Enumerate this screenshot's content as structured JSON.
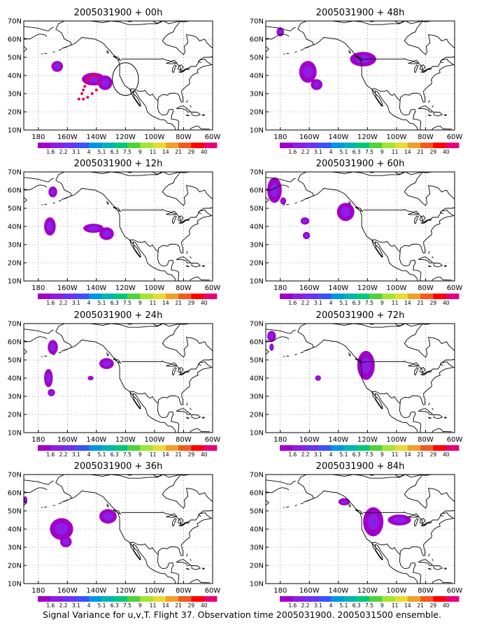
{
  "figure": {
    "caption": "Signal Variance for u,v,T. Flight 37. Observation time 2005031900. 2005031500 ensemble."
  },
  "colorbar": {
    "labels": [
      "1.6",
      "2.2",
      "3.1",
      "4",
      "5.1",
      "6.3",
      "7.5",
      "9",
      "11",
      "14",
      "21",
      "29",
      "40"
    ],
    "colors": [
      "#a000c8",
      "#8c1ee6",
      "#6e32f0",
      "#3c50ff",
      "#0096e1",
      "#00b4b4",
      "#00c878",
      "#50d23c",
      "#a0e632",
      "#e6dc32",
      "#f0a028",
      "#f05a1e",
      "#ff0000",
      "#e6007a"
    ]
  },
  "axes": {
    "x_ticks": [
      "180",
      "160W",
      "140W",
      "120W",
      "100W",
      "80W",
      "60W"
    ],
    "y_ticks": [
      "10N",
      "20N",
      "30N",
      "40N",
      "50N",
      "60N",
      "70N"
    ]
  },
  "chart_data": [
    {
      "type": "heatmap",
      "title": "2005031900 + 00h",
      "xlim": [
        -190,
        -60
      ],
      "ylim": [
        10,
        70
      ],
      "blobs": [
        {
          "lon": -167,
          "lat": 45,
          "rx": 4,
          "ry": 3
        },
        {
          "lon": -142,
          "lat": 38,
          "rx": 8,
          "ry": 3.5
        },
        {
          "lon": -134,
          "lat": 36,
          "rx": 5,
          "ry": 4
        }
      ],
      "track": [
        [
          -152,
          27
        ],
        [
          -150,
          30
        ],
        [
          -149,
          32
        ],
        [
          -148,
          34
        ],
        [
          -147,
          36
        ],
        [
          -146,
          38
        ],
        [
          -145,
          39
        ],
        [
          -143,
          40
        ],
        [
          -141,
          40
        ],
        [
          -139,
          39
        ],
        [
          -138,
          36
        ],
        [
          -140,
          32
        ],
        [
          -143,
          30
        ],
        [
          -146,
          28
        ],
        [
          -149,
          27
        ]
      ],
      "circle": {
        "lon": -120,
        "lat": 38,
        "r": 9
      }
    },
    {
      "type": "heatmap",
      "title": "2005031900 + 48h",
      "xlim": [
        -190,
        -60
      ],
      "ylim": [
        10,
        70
      ],
      "blobs": [
        {
          "lon": -180,
          "lat": 64,
          "rx": 2.5,
          "ry": 2.5
        },
        {
          "lon": -161,
          "lat": 42,
          "rx": 6,
          "ry": 6
        },
        {
          "lon": -155,
          "lat": 35,
          "rx": 4,
          "ry": 3
        },
        {
          "lon": -123,
          "lat": 49,
          "rx": 9,
          "ry": 4
        }
      ]
    },
    {
      "type": "heatmap",
      "title": "2005031900 + 12h",
      "xlim": [
        -190,
        -60
      ],
      "ylim": [
        10,
        70
      ],
      "blobs": [
        {
          "lon": -170,
          "lat": 59,
          "rx": 3,
          "ry": 3
        },
        {
          "lon": -172,
          "lat": 40,
          "rx": 4,
          "ry": 5
        },
        {
          "lon": -142,
          "lat": 39,
          "rx": 7,
          "ry": 2.5
        },
        {
          "lon": -133,
          "lat": 36,
          "rx": 5,
          "ry": 3.5
        }
      ]
    },
    {
      "type": "heatmap",
      "title": "2005031900 + 60h",
      "xlim": [
        -190,
        -60
      ],
      "ylim": [
        10,
        70
      ],
      "blobs": [
        {
          "lon": -184,
          "lat": 60,
          "rx": 5,
          "ry": 7
        },
        {
          "lon": -178,
          "lat": 54,
          "rx": 2,
          "ry": 2
        },
        {
          "lon": -163,
          "lat": 43,
          "rx": 3,
          "ry": 2
        },
        {
          "lon": -162,
          "lat": 35,
          "rx": 2.5,
          "ry": 2
        },
        {
          "lon": -135,
          "lat": 48,
          "rx": 6,
          "ry": 5
        }
      ]
    },
    {
      "type": "heatmap",
      "title": "2005031900 + 24h",
      "xlim": [
        -190,
        -60
      ],
      "ylim": [
        10,
        70
      ],
      "blobs": [
        {
          "lon": -170,
          "lat": 57,
          "rx": 3.5,
          "ry": 4
        },
        {
          "lon": -173,
          "lat": 40,
          "rx": 3,
          "ry": 5
        },
        {
          "lon": -171,
          "lat": 32,
          "rx": 2.5,
          "ry": 2
        },
        {
          "lon": -133,
          "lat": 48,
          "rx": 5,
          "ry": 3
        },
        {
          "lon": -144,
          "lat": 40,
          "rx": 2,
          "ry": 1.2
        }
      ]
    },
    {
      "type": "heatmap",
      "title": "2005031900 + 72h",
      "xlim": [
        -190,
        -60
      ],
      "ylim": [
        10,
        70
      ],
      "blobs": [
        {
          "lon": -186,
          "lat": 63,
          "rx": 3,
          "ry": 3
        },
        {
          "lon": -186,
          "lat": 57,
          "rx": 1.5,
          "ry": 2
        },
        {
          "lon": -154,
          "lat": 40,
          "rx": 2,
          "ry": 1.5
        },
        {
          "lon": -121,
          "lat": 47,
          "rx": 6,
          "ry": 8
        }
      ]
    },
    {
      "type": "heatmap",
      "title": "2005031900 + 36h",
      "xlim": [
        -190,
        -60
      ],
      "ylim": [
        10,
        70
      ],
      "blobs": [
        {
          "lon": -189,
          "lat": 56,
          "rx": 1.5,
          "ry": 2
        },
        {
          "lon": -164,
          "lat": 40,
          "rx": 8,
          "ry": 6
        },
        {
          "lon": -161,
          "lat": 33,
          "rx": 4,
          "ry": 3
        },
        {
          "lon": -132,
          "lat": 47,
          "rx": 6,
          "ry": 4
        }
      ]
    },
    {
      "type": "heatmap",
      "title": "2005031900 + 84h",
      "xlim": [
        -190,
        -60
      ],
      "ylim": [
        10,
        70
      ],
      "blobs": [
        {
          "lon": -136,
          "lat": 55,
          "rx": 4,
          "ry": 2
        },
        {
          "lon": -116,
          "lat": 44,
          "rx": 7,
          "ry": 8
        },
        {
          "lon": -98,
          "lat": 45,
          "rx": 8,
          "ry": 3
        }
      ]
    }
  ]
}
